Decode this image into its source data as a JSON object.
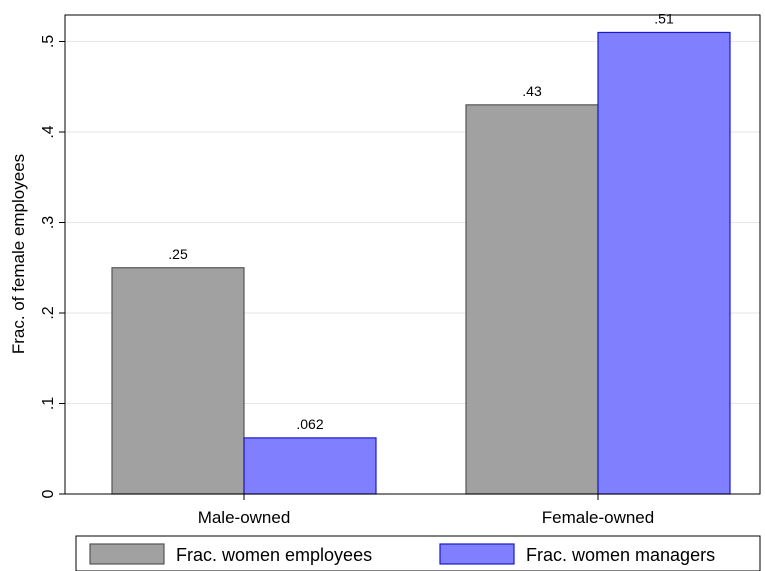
{
  "chart_data": {
    "type": "bar",
    "categories": [
      "Male-owned",
      "Female-owned"
    ],
    "series": [
      {
        "name": "Frac. women employees",
        "values": [
          0.25,
          0.43
        ],
        "labels": [
          ".25",
          ".43"
        ],
        "color": "#a1a1a1",
        "stroke": "#555555"
      },
      {
        "name": "Frac. women managers",
        "values": [
          0.062,
          0.51
        ],
        "labels": [
          ".062",
          ".51"
        ],
        "color": "#8080ff",
        "stroke": "#1a1acc"
      }
    ],
    "ylabel": "Frac. of female employees",
    "xlabel": "",
    "ylim": [
      0,
      0.53
    ],
    "yticks": [
      0,
      0.1,
      0.2,
      0.3,
      0.4,
      0.5
    ],
    "ytick_labels": [
      "0",
      ".1",
      ".2",
      ".3",
      ".4",
      ".5"
    ],
    "grid": true,
    "legend_position": "bottom"
  }
}
